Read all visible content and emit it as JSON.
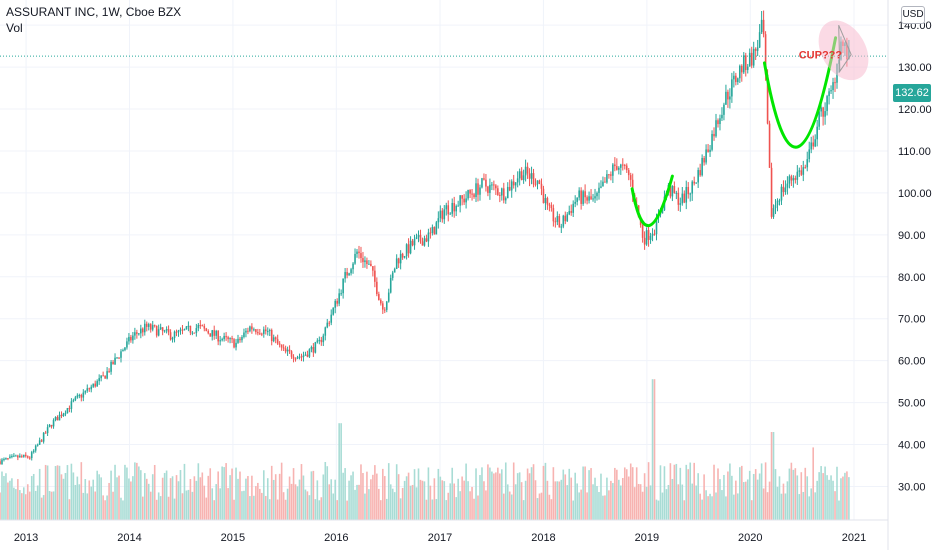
{
  "legend": {
    "title": "ASSURANT INC, 1W, Cboe BZX",
    "volume_label": "Vol"
  },
  "currency": "USD",
  "last_price_label": "132.62",
  "annotation": {
    "text": "CUP???"
  },
  "colors": {
    "up": "#26a69a",
    "down": "#ef5350",
    "volume_up": "#a8dcd5",
    "volume_down": "#f7b3b1",
    "cup": "#00e600",
    "annotation_text": "#e53935",
    "highlight": "#f8bbd0",
    "last_price_line": "#26a69a"
  },
  "chart_data": {
    "type": "candlestick",
    "x_axis": {
      "type": "time",
      "range": [
        "2012-10-01",
        "2021-05-01"
      ],
      "tick_labels": [
        "2013",
        "2014",
        "2015",
        "2016",
        "2017",
        "2018",
        "2019",
        "2020",
        "2021"
      ],
      "tick_dates": [
        "2013-01-01",
        "2014-01-01",
        "2015-01-01",
        "2016-01-01",
        "2017-01-01",
        "2018-01-01",
        "2019-01-01",
        "2020-01-01",
        "2021-01-01"
      ]
    },
    "y_axis": {
      "range": [
        22,
        146
      ],
      "tick_labels": [
        "30.00",
        "40.00",
        "50.00",
        "60.00",
        "70.00",
        "80.00",
        "90.00",
        "100.00",
        "110.00",
        "120.00",
        "130.00",
        "140.00"
      ],
      "tick_values": [
        30,
        40,
        50,
        60,
        70,
        80,
        90,
        100,
        110,
        120,
        130,
        140
      ]
    },
    "last_price": 132.62,
    "price_path": [
      [
        "2012-10-01",
        36
      ],
      [
        "2012-12-01",
        37
      ],
      [
        "2013-01-15",
        37
      ],
      [
        "2013-04-01",
        45
      ],
      [
        "2013-07-01",
        51
      ],
      [
        "2013-10-01",
        56
      ],
      [
        "2013-12-01",
        62
      ],
      [
        "2014-01-15",
        66
      ],
      [
        "2014-03-01",
        68
      ],
      [
        "2014-06-01",
        66
      ],
      [
        "2014-09-01",
        68
      ],
      [
        "2014-12-01",
        65
      ],
      [
        "2015-01-15",
        64
      ],
      [
        "2015-03-01",
        68
      ],
      [
        "2015-05-01",
        67
      ],
      [
        "2015-07-01",
        62
      ],
      [
        "2015-09-01",
        61
      ],
      [
        "2015-11-01",
        64
      ],
      [
        "2016-01-01",
        74
      ],
      [
        "2016-02-01",
        80
      ],
      [
        "2016-03-15",
        86
      ],
      [
        "2016-05-01",
        82
      ],
      [
        "2016-06-15",
        72
      ],
      [
        "2016-08-01",
        84
      ],
      [
        "2016-10-01",
        88
      ],
      [
        "2016-12-01",
        90
      ],
      [
        "2017-01-15",
        96
      ],
      [
        "2017-03-15",
        98
      ],
      [
        "2017-06-01",
        102
      ],
      [
        "2017-08-15",
        100
      ],
      [
        "2017-10-15",
        105
      ],
      [
        "2017-12-15",
        103
      ],
      [
        "2018-01-15",
        96
      ],
      [
        "2018-03-01",
        92
      ],
      [
        "2018-05-01",
        99
      ],
      [
        "2018-07-01",
        98
      ],
      [
        "2018-09-15",
        107
      ],
      [
        "2018-11-01",
        104
      ],
      [
        "2018-12-20",
        89
      ],
      [
        "2019-02-01",
        92
      ],
      [
        "2019-03-15",
        101
      ],
      [
        "2019-05-01",
        98
      ],
      [
        "2019-06-15",
        102
      ],
      [
        "2019-08-01",
        110
      ],
      [
        "2019-10-01",
        122
      ],
      [
        "2019-12-01",
        130
      ],
      [
        "2020-01-15",
        133
      ],
      [
        "2020-02-15",
        140
      ],
      [
        "2020-03-15",
        95
      ],
      [
        "2020-04-15",
        100
      ],
      [
        "2020-06-01",
        104
      ],
      [
        "2020-07-15",
        106
      ],
      [
        "2020-09-01",
        118
      ],
      [
        "2020-10-15",
        124
      ],
      [
        "2020-11-15",
        136
      ],
      [
        "2020-12-15",
        132
      ]
    ],
    "volume": {
      "unit": "relative",
      "typical": 0.22,
      "spikes": [
        [
          "2016-01-15",
          0.44
        ],
        [
          "2019-01-25",
          0.64
        ],
        [
          "2020-03-20",
          0.4
        ],
        [
          "2020-08-10",
          0.33
        ]
      ]
    }
  }
}
